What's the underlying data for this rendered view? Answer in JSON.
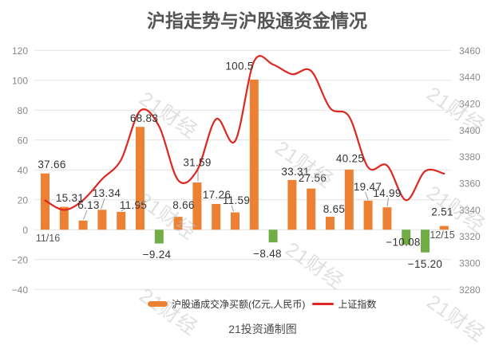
{
  "title": "沪指走势与沪股通资金情况",
  "caption": "21投资通制图",
  "watermark": "21财经",
  "legend": {
    "bar_label": "沪股通成交净买额(亿元,人民币)",
    "line_label": "上证指数"
  },
  "colors": {
    "bar_positive": "#ed8133",
    "bar_negative": "#70ad47",
    "line": "#dd2721",
    "grid": "#e2e2e2",
    "tick_text": "#8a8a8a",
    "data_label": "#333333",
    "leader": "#999999"
  },
  "chart_data": {
    "type": "bar+line",
    "x_axis_labels_shown": [
      "11/16",
      "12/15"
    ],
    "categories_count": 22,
    "left_axis": {
      "min": -40,
      "max": 120,
      "step": 20,
      "ticks": [
        "120",
        "100",
        "80",
        "60",
        "40",
        "20",
        "0",
        "−20",
        "−40"
      ]
    },
    "right_axis": {
      "min": 3280,
      "max": 3460,
      "step": 20,
      "ticks": [
        "3460",
        "3440",
        "3420",
        "3400",
        "3380",
        "3360",
        "3340",
        "3320",
        "3300",
        "3280"
      ]
    },
    "series": [
      {
        "name": "沪股通成交净买额(亿元,人民币)",
        "type": "bar",
        "axis": "left",
        "values": [
          37.66,
          15.31,
          6.13,
          13.34,
          11.95,
          68.83,
          -9.24,
          8.66,
          31.59,
          17.26,
          11.59,
          100.5,
          -8.48,
          33.31,
          27.56,
          8.65,
          40.25,
          19.47,
          14.99,
          -10.08,
          -15.2,
          2.51
        ],
        "labels": [
          "37.66",
          "15.31",
          "6.13",
          "13.34",
          "11.95",
          "68.83",
          "−9.24",
          "8.66",
          "31.59",
          "17.26",
          "11.59",
          "100.5",
          "−8.48",
          "33.31",
          "27.56",
          "8.65",
          "40.25",
          "19.47",
          "14.99",
          "−10.08",
          "−15.20",
          "2.51"
        ]
      },
      {
        "name": "上证指数",
        "type": "line",
        "axis": "right",
        "values": [
          3347,
          3339.9,
          3347.3,
          3363.1,
          3377.7,
          3414.5,
          3402.8,
          3362.3,
          3369.7,
          3408.3,
          3391.8,
          3451.9,
          3449.4,
          3442.1,
          3444.6,
          3416.6,
          3410.2,
          3372,
          3373.3,
          3347.2,
          3369.1,
          3367.2
        ]
      }
    ]
  }
}
